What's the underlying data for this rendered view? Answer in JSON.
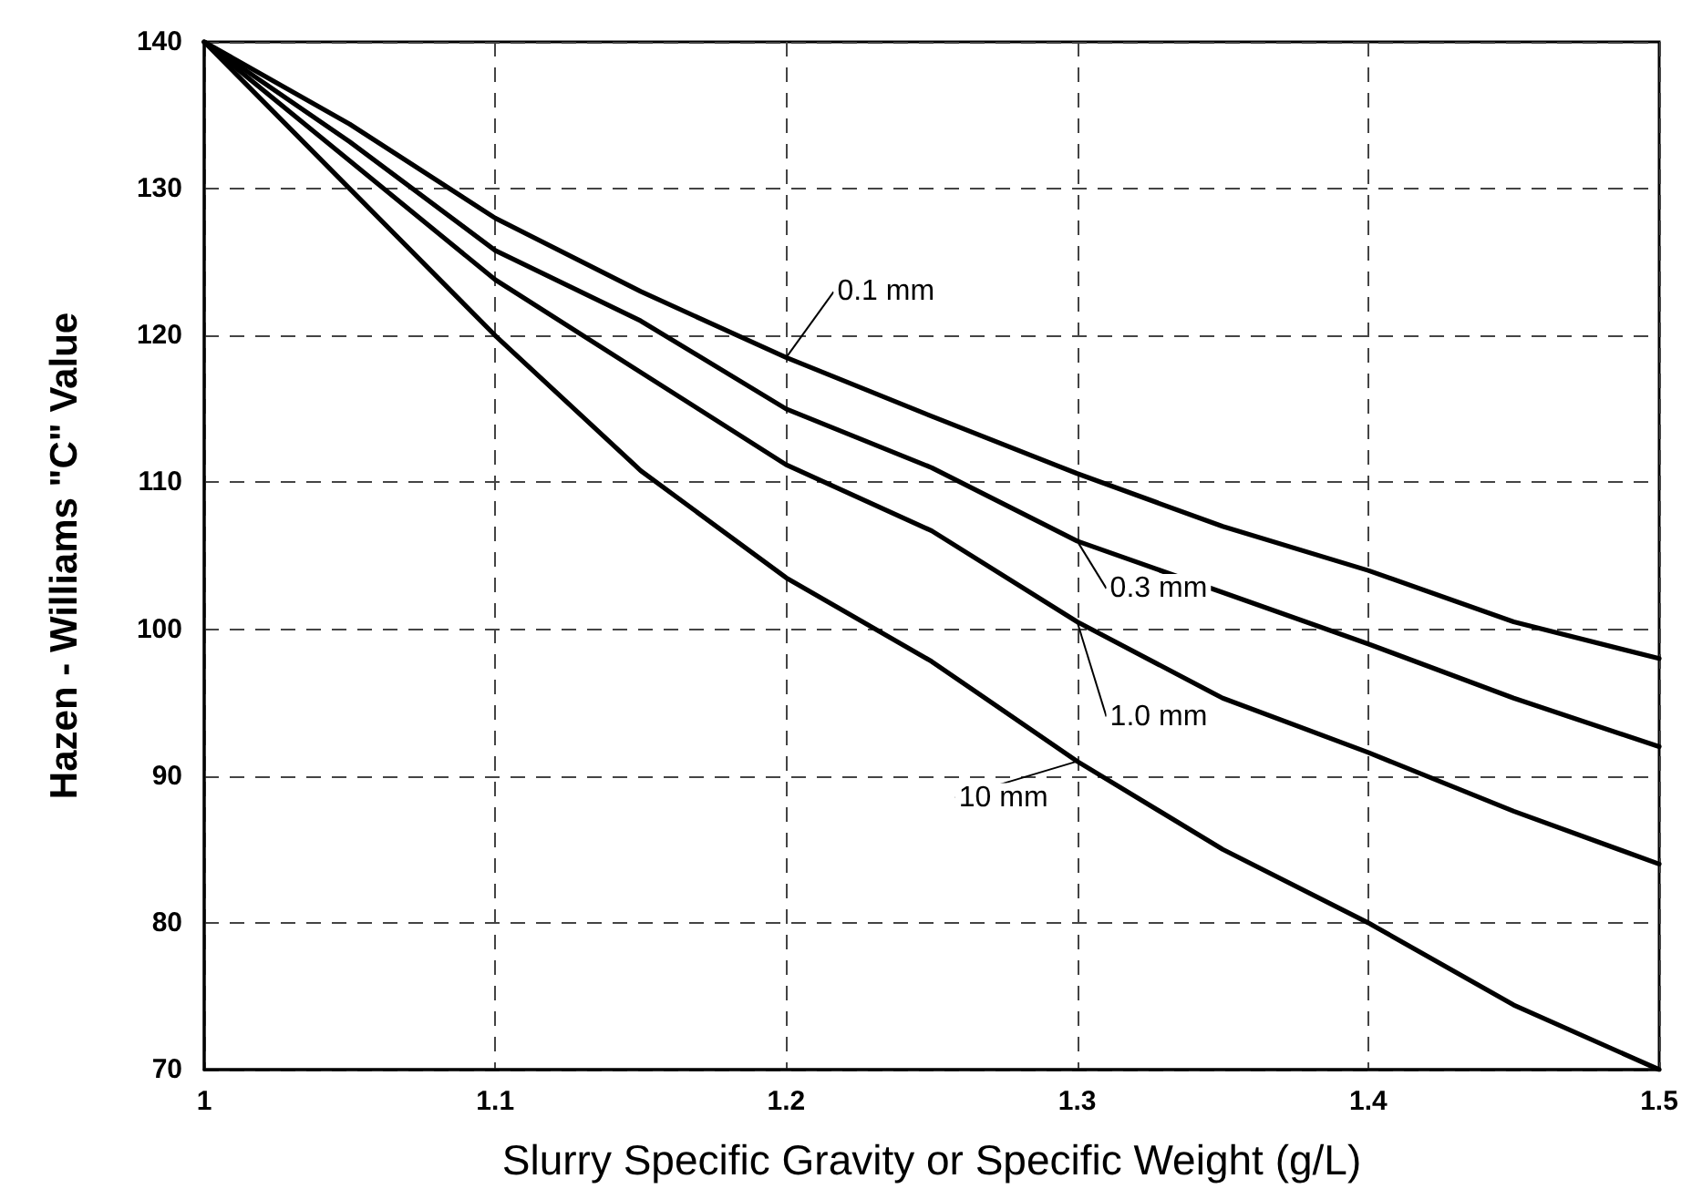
{
  "chart_data": {
    "type": "line",
    "xlabel": "Slurry Specific Gravity or Specific Weight (g/L)",
    "ylabel": "Hazen - Williams \"C\" Value",
    "x": [
      1,
      1.05,
      1.1,
      1.15,
      1.2,
      1.25,
      1.3,
      1.35,
      1.4,
      1.45,
      1.5
    ],
    "series": [
      {
        "name": "0.1 mm",
        "color": "#000000",
        "values": [
          140,
          134.4,
          128,
          123,
          118.5,
          114.5,
          110.6,
          107,
          104,
          100.5,
          98
        ]
      },
      {
        "name": "0.3 mm",
        "color": "#000000",
        "values": [
          140,
          133.2,
          125.8,
          121,
          115,
          111,
          106,
          102.5,
          99,
          95.3,
          92
        ]
      },
      {
        "name": "1.0 mm",
        "color": "#000000",
        "values": [
          140,
          131.9,
          123.8,
          117.5,
          111.2,
          106.7,
          100.5,
          95.3,
          91.6,
          87.6,
          84
        ]
      },
      {
        "name": "10 mm",
        "color": "#000000",
        "values": [
          140,
          130,
          120,
          110.8,
          103.5,
          97.8,
          91,
          85,
          80,
          74.4,
          70
        ]
      }
    ],
    "xlim": [
      1,
      1.5
    ],
    "xticks": [
      1,
      1.1,
      1.2,
      1.3,
      1.4,
      1.5
    ],
    "ylim": [
      70,
      140
    ],
    "yticks": [
      70,
      80,
      90,
      100,
      110,
      120,
      130,
      140
    ],
    "grid": true,
    "legend": false,
    "marker": "none",
    "line_style": "solid"
  }
}
